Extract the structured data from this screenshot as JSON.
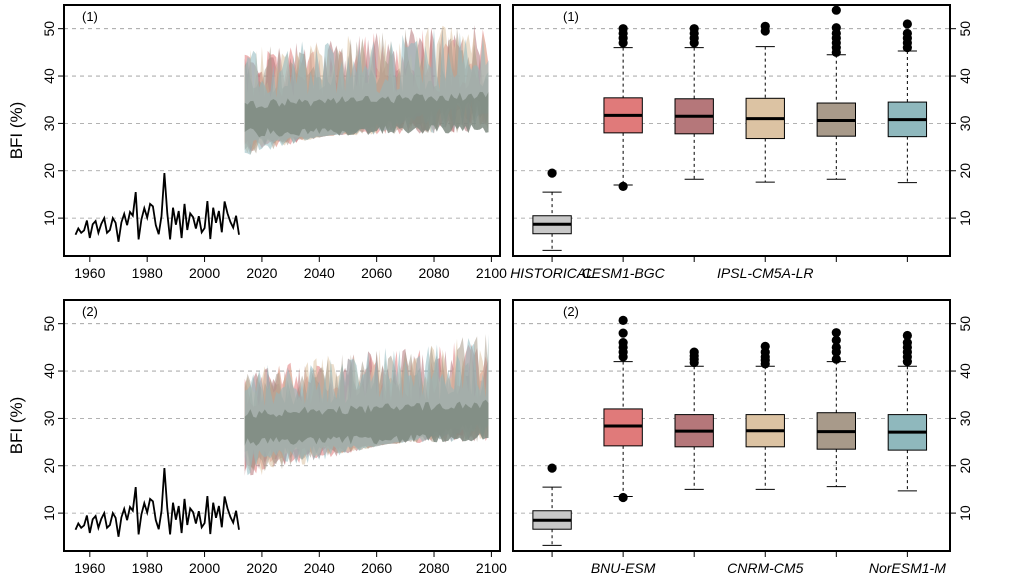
{
  "colors": {
    "historical_line": "#000000",
    "grid": "#999999",
    "palette": [
      "#e07a7a",
      "#b5777a",
      "#dcc3a3",
      "#a89a8a",
      "#8fb8bd"
    ],
    "historical_box": "#c8c8c8",
    "ensemble_overlap": "#7e8a80"
  },
  "y_axis_label": "BFI (%)",
  "chart_data": [
    {
      "type": "line",
      "panel_label": "(1)",
      "ylabel": "BFI (%)",
      "xlim": [
        1951,
        2103
      ],
      "ylim": [
        2,
        55
      ],
      "x_ticks": [
        1960,
        1980,
        2000,
        2020,
        2040,
        2060,
        2080,
        2100
      ],
      "y_ticks": [
        10,
        20,
        30,
        40,
        50
      ],
      "grid": "horizontal dashed",
      "historical": {
        "x": [
          1955,
          1956,
          1957,
          1958,
          1959,
          1960,
          1961,
          1962,
          1963,
          1964,
          1965,
          1966,
          1967,
          1968,
          1969,
          1970,
          1971,
          1972,
          1973,
          1974,
          1975,
          1976,
          1977,
          1978,
          1979,
          1980,
          1981,
          1982,
          1983,
          1984,
          1985,
          1986,
          1987,
          1988,
          1989,
          1990,
          1991,
          1992,
          1993,
          1994,
          1995,
          1996,
          1997,
          1998,
          1999,
          2000,
          2001,
          2002,
          2003,
          2004,
          2005,
          2006,
          2007,
          2008,
          2009,
          2010,
          2011,
          2012
        ],
        "y": [
          6.5,
          7.8,
          6.9,
          7.4,
          9.5,
          5.8,
          8.7,
          9.4,
          6.9,
          8.8,
          10.0,
          6.9,
          7.5,
          10.0,
          9.0,
          5.0,
          9.1,
          10.9,
          8.5,
          11.3,
          10.5,
          15.5,
          5.5,
          9.7,
          12.1,
          10.1,
          13.0,
          12.5,
          8.5,
          6.6,
          10.4,
          19.5,
          11.0,
          5.5,
          12.2,
          8.6,
          11.5,
          5.8,
          13.0,
          7.5,
          11.0,
          10.2,
          7.8,
          10.4,
          7.0,
          7.9,
          13.6,
          5.6,
          12.2,
          9.0,
          11.5,
          7.0,
          13.5,
          11.0,
          9.2,
          8.0,
          10.5,
          6.5
        ]
      },
      "projection": {
        "x_range": [
          2014,
          2099
        ],
        "envelope_low": [
          23,
          36
        ],
        "envelope_high": [
          46,
          52
        ],
        "central_range": [
          27,
          37
        ],
        "series_count": 5
      }
    },
    {
      "type": "box",
      "panel_label": "(1)",
      "ylim": [
        2,
        55
      ],
      "y_ticks": [
        10,
        20,
        30,
        40,
        50
      ],
      "category_labels": [
        "HISTORICAL",
        "CESM1-BGC",
        "IPSL-CM5A-LR"
      ],
      "boxes": [
        {
          "name": "HISTORICAL",
          "whisker_low": 3.2,
          "q1": 6.7,
          "median": 8.7,
          "q3": 10.5,
          "whisker_high": 15.5,
          "outliers": [
            19.5
          ]
        },
        {
          "name": "CESM1-BGC",
          "whisker_low": 17.0,
          "q1": 28.0,
          "median": 31.7,
          "q3": 35.4,
          "whisker_high": 46.0,
          "outliers": [
            16.7,
            47.0,
            48.0,
            49.0,
            50.0
          ]
        },
        {
          "name": "",
          "whisker_low": 18.2,
          "q1": 27.8,
          "median": 31.5,
          "q3": 35.2,
          "whisker_high": 46.0,
          "outliers": [
            47.0,
            48.0,
            49.0,
            50.0
          ]
        },
        {
          "name": "IPSL-CM5A-LR",
          "whisker_low": 17.6,
          "q1": 26.8,
          "median": 31.0,
          "q3": 35.3,
          "whisker_high": 46.2,
          "outliers": [
            49.5,
            50.5
          ]
        },
        {
          "name": "",
          "whisker_low": 18.2,
          "q1": 27.3,
          "median": 30.6,
          "q3": 34.3,
          "whisker_high": 44.5,
          "outliers": [
            45.0,
            46.0,
            47.0,
            48.0,
            49.0,
            50.2,
            53.9
          ]
        },
        {
          "name": "",
          "whisker_low": 17.5,
          "q1": 27.2,
          "median": 30.8,
          "q3": 34.5,
          "whisker_high": 45.3,
          "outliers": [
            46.0,
            47.0,
            48.0,
            49.0,
            51.0
          ]
        }
      ]
    },
    {
      "type": "line",
      "panel_label": "(2)",
      "ylabel": "BFI (%)",
      "xlim": [
        1951,
        2103
      ],
      "ylim": [
        2,
        55
      ],
      "x_ticks": [
        1960,
        1980,
        2000,
        2020,
        2040,
        2060,
        2080,
        2100
      ],
      "y_ticks": [
        10,
        20,
        30,
        40,
        50
      ],
      "grid": "horizontal dashed",
      "historical": {
        "x": [
          1955,
          1956,
          1957,
          1958,
          1959,
          1960,
          1961,
          1962,
          1963,
          1964,
          1965,
          1966,
          1967,
          1968,
          1969,
          1970,
          1971,
          1972,
          1973,
          1974,
          1975,
          1976,
          1977,
          1978,
          1979,
          1980,
          1981,
          1982,
          1983,
          1984,
          1985,
          1986,
          1987,
          1988,
          1989,
          1990,
          1991,
          1992,
          1993,
          1994,
          1995,
          1996,
          1997,
          1998,
          1999,
          2000,
          2001,
          2002,
          2003,
          2004,
          2005,
          2006,
          2007,
          2008,
          2009,
          2010,
          2011,
          2012
        ],
        "y": [
          6.5,
          7.8,
          6.9,
          7.4,
          9.5,
          5.8,
          8.7,
          9.4,
          6.9,
          8.8,
          10.0,
          6.9,
          7.5,
          10.0,
          9.0,
          5.0,
          9.1,
          10.9,
          8.5,
          11.3,
          10.5,
          15.5,
          5.5,
          9.7,
          12.1,
          10.1,
          13.0,
          12.5,
          8.5,
          6.6,
          10.4,
          19.5,
          11.0,
          5.5,
          12.2,
          8.6,
          11.5,
          5.8,
          13.0,
          7.5,
          11.0,
          10.2,
          7.8,
          10.4,
          7.0,
          7.9,
          13.6,
          5.6,
          12.2,
          9.0,
          11.5,
          7.0,
          13.5,
          11.0,
          9.2,
          8.0,
          10.5,
          6.5
        ]
      },
      "projection": {
        "x_range": [
          2014,
          2099
        ],
        "envelope_low": [
          17,
          30
        ],
        "envelope_high": [
          41,
          48
        ],
        "central_range": [
          24,
          34
        ],
        "series_count": 5
      }
    },
    {
      "type": "box",
      "panel_label": "(2)",
      "ylim": [
        2,
        55
      ],
      "y_ticks": [
        10,
        20,
        30,
        40,
        50
      ],
      "category_labels": [
        "BNU-ESM",
        "CNRM-CM5",
        "NorESM1-M"
      ],
      "boxes": [
        {
          "name": "",
          "whisker_low": 3.2,
          "q1": 6.6,
          "median": 8.5,
          "q3": 10.5,
          "whisker_high": 15.5,
          "outliers": [
            19.5
          ]
        },
        {
          "name": "BNU-ESM",
          "whisker_low": 13.5,
          "q1": 24.2,
          "median": 28.4,
          "q3": 32.0,
          "whisker_high": 42.0,
          "outliers": [
            13.3,
            43.0,
            44.0,
            45.0,
            46.0,
            48.0,
            50.7
          ]
        },
        {
          "name": "",
          "whisker_low": 15.0,
          "q1": 24.0,
          "median": 27.3,
          "q3": 30.8,
          "whisker_high": 41.0,
          "outliers": [
            41.8,
            42.5,
            43.2,
            44.0
          ]
        },
        {
          "name": "CNRM-CM5",
          "whisker_low": 15.0,
          "q1": 24.0,
          "median": 27.4,
          "q3": 30.8,
          "whisker_high": 41.0,
          "outliers": [
            41.5,
            42.3,
            43.0,
            44.0,
            45.2
          ]
        },
        {
          "name": "",
          "whisker_low": 15.6,
          "q1": 23.5,
          "median": 27.2,
          "q3": 31.2,
          "whisker_high": 42.0,
          "outliers": [
            42.5,
            44.0,
            45.0,
            46.5,
            48.1
          ]
        },
        {
          "name": "NorESM1-M",
          "whisker_low": 14.7,
          "q1": 23.3,
          "median": 27.1,
          "q3": 30.8,
          "whisker_high": 41.0,
          "outliers": [
            42.0,
            43.0,
            44.0,
            45.0,
            46.0,
            47.5
          ]
        }
      ]
    }
  ]
}
